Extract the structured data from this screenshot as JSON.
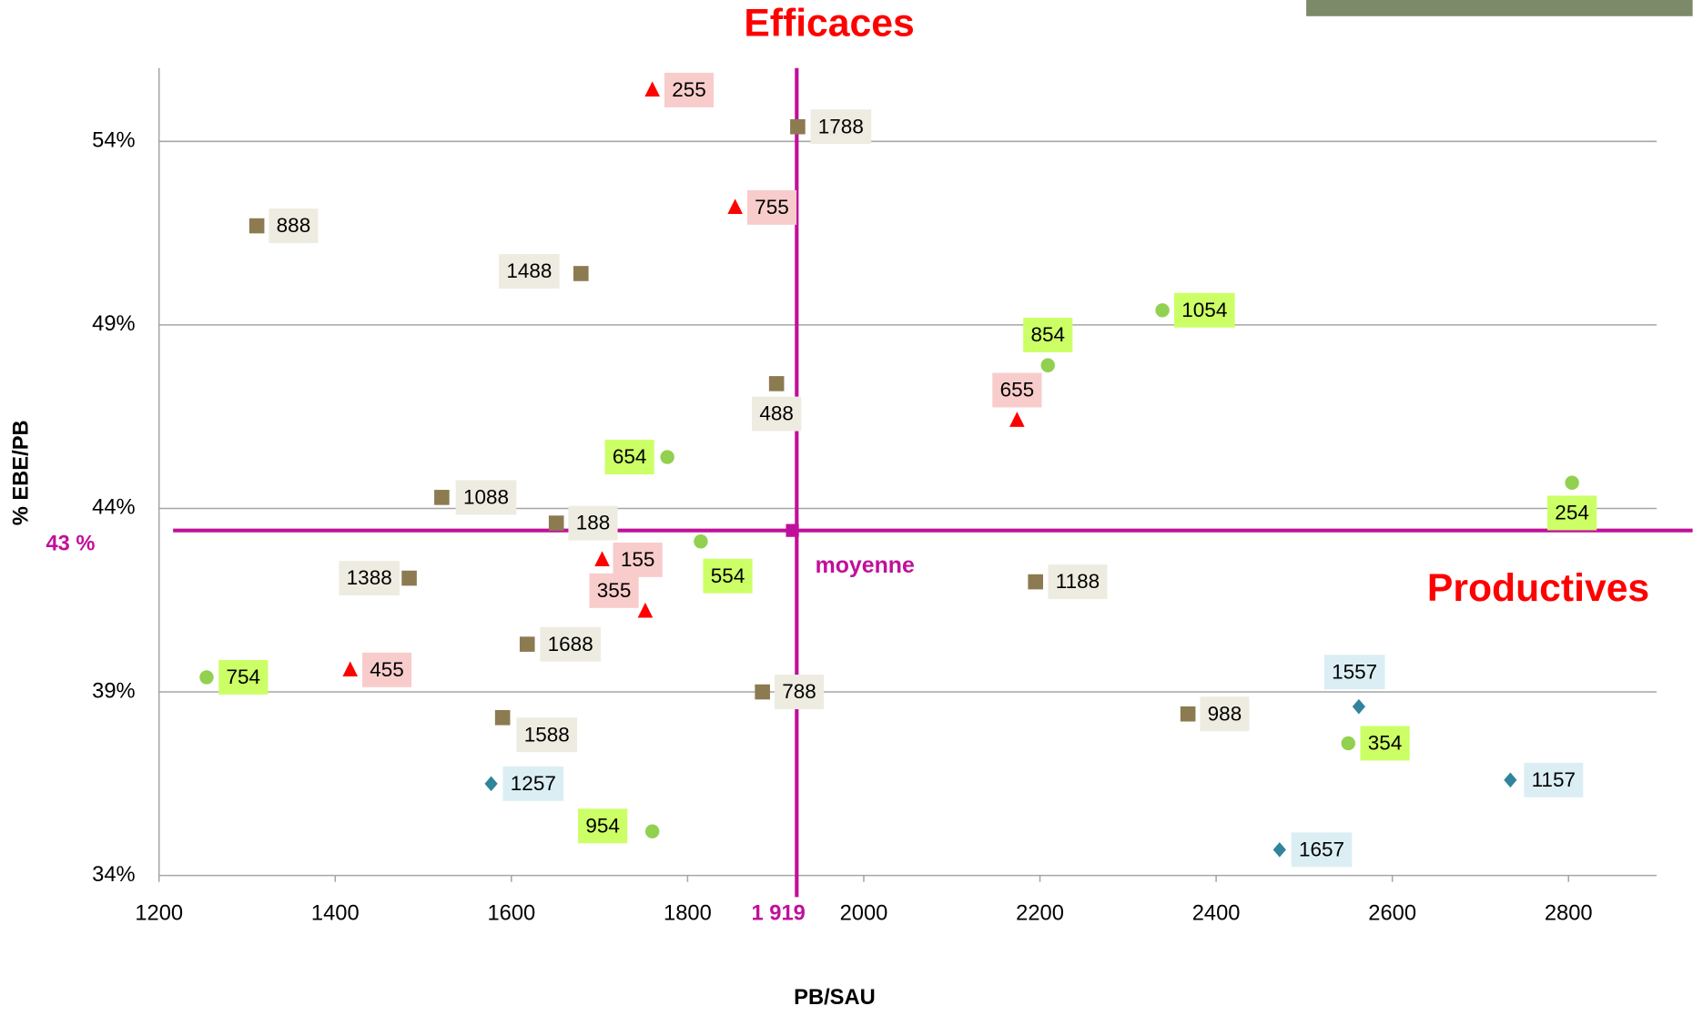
{
  "chart_data": {
    "type": "scatter",
    "annotations": {
      "top": "Efficaces",
      "right": "Productives",
      "mean": "moyenne"
    },
    "xlabel": "PB/SAU",
    "ylabel": "% EBE/PB",
    "xlim": [
      1200,
      2900
    ],
    "ylim": [
      34,
      56
    ],
    "xticks": [
      1200,
      1400,
      1600,
      1800,
      2000,
      2200,
      2400,
      2600,
      2800
    ],
    "yticks": [
      {
        "value": 34,
        "label": "34%"
      },
      {
        "value": 39,
        "label": "39%"
      },
      {
        "value": 44,
        "label": "44%"
      },
      {
        "value": 49,
        "label": "49%"
      },
      {
        "value": 54,
        "label": "54%"
      }
    ],
    "grid": true,
    "mean": {
      "x": 1919,
      "y": 43.4,
      "x_label": "1 919",
      "y_label": "43 %",
      "color": "#c0109a"
    },
    "series": [
      {
        "marker": "triangle",
        "color": "#ff0000",
        "label_color": "#f9cccc",
        "labels": [
          "255",
          "755",
          "655",
          "155",
          "355",
          "455"
        ],
        "x": [
          1760,
          1854,
          2174,
          1703,
          1752,
          1417
        ],
        "values": [
          55.4,
          52.2,
          46.4,
          42.6,
          41.2,
          39.6
        ]
      },
      {
        "marker": "square",
        "color": "#8c7b50",
        "label_color": "#eeece1",
        "labels": [
          "1788",
          "888",
          "1488",
          "488",
          "1088",
          "188",
          "1388",
          "1188",
          "1688",
          "788",
          "988",
          "1588"
        ],
        "x": [
          1925,
          1311,
          1679,
          1901,
          1521,
          1651,
          1484,
          2195,
          1618,
          1885,
          2368,
          1590
        ],
        "values": [
          54.4,
          51.7,
          50.4,
          47.4,
          44.3,
          43.6,
          42.1,
          42.0,
          40.3,
          39.0,
          38.4,
          38.3
        ]
      },
      {
        "marker": "circle",
        "color": "#92d050",
        "label_color": "#ccff66",
        "labels": [
          "1054",
          "854",
          "654",
          "254",
          "554",
          "754",
          "354",
          "954"
        ],
        "x": [
          2339,
          2209,
          1777,
          2804,
          1815,
          1254,
          2550,
          1760
        ],
        "values": [
          49.4,
          47.9,
          45.4,
          44.7,
          43.1,
          39.4,
          37.6,
          35.2
        ]
      },
      {
        "marker": "diamond",
        "color": "#31849b",
        "label_color": "#dbeef4",
        "labels": [
          "1557",
          "1157",
          "1257",
          "1657"
        ],
        "x": [
          2562,
          2734,
          1577,
          2472
        ],
        "values": [
          38.6,
          36.6,
          36.5,
          34.7
        ]
      }
    ]
  }
}
